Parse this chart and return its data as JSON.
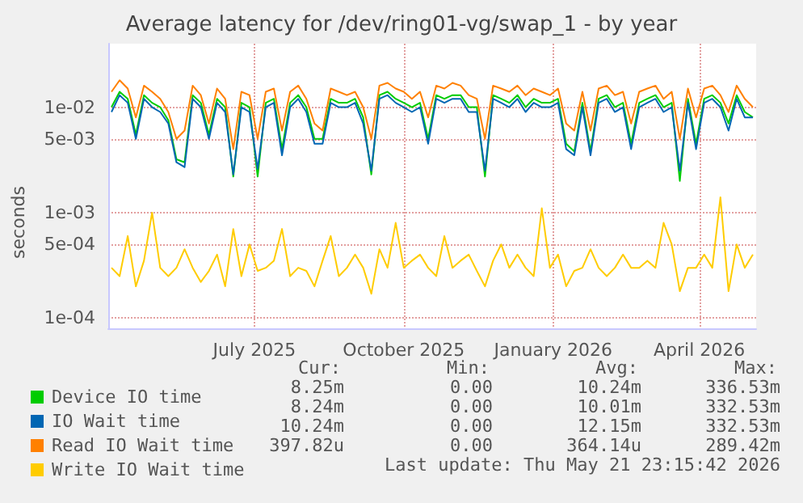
{
  "chart_data": {
    "type": "line",
    "title": "Average latency for /dev/ring01-vg/swap_1 - by year",
    "ylabel": "seconds",
    "log": "y",
    "grid": true,
    "legend": "bottom",
    "marker": "none",
    "ylim": [
      8e-05,
      0.04
    ],
    "yticks": [
      {
        "value": 0.0001,
        "label": "1e-04"
      },
      {
        "value": 0.0005,
        "label": "5e-04"
      },
      {
        "value": 0.001,
        "label": "1e-03"
      },
      {
        "value": 0.005,
        "label": "5e-03"
      },
      {
        "value": 0.01,
        "label": "1e-02"
      }
    ],
    "xlim": [
      "2025-04-17",
      "2026-05-21"
    ],
    "xticks": [
      {
        "value": "2025-07-16",
        "label": "July 2025"
      },
      {
        "value": "2025-10-16",
        "label": "October 2025"
      },
      {
        "value": "2026-01-16",
        "label": "January 2026"
      },
      {
        "value": "2026-04-16",
        "label": "April 2026"
      }
    ],
    "x": [
      "2025-04-19",
      "2025-04-24",
      "2025-04-29",
      "2025-05-04",
      "2025-05-09",
      "2025-05-14",
      "2025-05-19",
      "2025-05-24",
      "2025-05-29",
      "2025-06-03",
      "2025-06-08",
      "2025-06-13",
      "2025-06-18",
      "2025-06-23",
      "2025-06-28",
      "2025-07-03",
      "2025-07-08",
      "2025-07-13",
      "2025-07-18",
      "2025-07-23",
      "2025-07-28",
      "2025-08-02",
      "2025-08-07",
      "2025-08-12",
      "2025-08-17",
      "2025-08-22",
      "2025-08-27",
      "2025-09-01",
      "2025-09-06",
      "2025-09-11",
      "2025-09-16",
      "2025-09-21",
      "2025-09-26",
      "2025-10-01",
      "2025-10-06",
      "2025-10-11",
      "2025-10-16",
      "2025-10-21",
      "2025-10-26",
      "2025-10-31",
      "2025-11-05",
      "2025-11-10",
      "2025-11-15",
      "2025-11-20",
      "2025-11-25",
      "2025-11-30",
      "2025-12-05",
      "2025-12-10",
      "2025-12-15",
      "2025-12-20",
      "2025-12-25",
      "2025-12-30",
      "2026-01-04",
      "2026-01-09",
      "2026-01-14",
      "2026-01-19",
      "2026-01-24",
      "2026-01-29",
      "2026-02-03",
      "2026-02-08",
      "2026-02-13",
      "2026-02-18",
      "2026-02-23",
      "2026-02-28",
      "2026-03-05",
      "2026-03-10",
      "2026-03-15",
      "2026-03-20",
      "2026-03-25",
      "2026-03-30",
      "2026-04-04",
      "2026-04-09",
      "2026-04-14",
      "2026-04-19",
      "2026-04-24",
      "2026-04-29",
      "2026-05-04",
      "2026-05-09",
      "2026-05-14",
      "2026-05-19"
    ],
    "series": [
      {
        "name": "Device IO time",
        "color": "#00cc00",
        "values": [
          0.01,
          0.014,
          0.012,
          0.0055,
          0.013,
          0.011,
          0.01,
          0.0075,
          0.0032,
          0.003,
          0.013,
          0.011,
          0.0055,
          0.012,
          0.01,
          0.0022,
          0.011,
          0.01,
          0.0022,
          0.011,
          0.012,
          0.004,
          0.011,
          0.013,
          0.01,
          0.005,
          0.005,
          0.012,
          0.011,
          0.011,
          0.012,
          0.008,
          0.0023,
          0.013,
          0.014,
          0.012,
          0.011,
          0.01,
          0.011,
          0.005,
          0.013,
          0.012,
          0.013,
          0.013,
          0.01,
          0.01,
          0.0022,
          0.013,
          0.012,
          0.011,
          0.013,
          0.01,
          0.012,
          0.011,
          0.011,
          0.012,
          0.0045,
          0.0038,
          0.011,
          0.0038,
          0.012,
          0.013,
          0.01,
          0.011,
          0.0045,
          0.011,
          0.012,
          0.013,
          0.01,
          0.011,
          0.002,
          0.012,
          0.0045,
          0.012,
          0.013,
          0.011,
          0.007,
          0.013,
          0.009,
          0.008
        ]
      },
      {
        "name": "IO Wait time",
        "color": "#0066b3",
        "values": [
          0.009,
          0.013,
          0.011,
          0.005,
          0.012,
          0.01,
          0.009,
          0.007,
          0.003,
          0.0027,
          0.012,
          0.01,
          0.005,
          0.011,
          0.009,
          0.0023,
          0.01,
          0.009,
          0.0026,
          0.01,
          0.011,
          0.0035,
          0.01,
          0.012,
          0.009,
          0.0045,
          0.0045,
          0.011,
          0.01,
          0.01,
          0.011,
          0.007,
          0.0025,
          0.012,
          0.013,
          0.011,
          0.01,
          0.009,
          0.01,
          0.0045,
          0.012,
          0.011,
          0.012,
          0.012,
          0.009,
          0.009,
          0.0025,
          0.012,
          0.011,
          0.01,
          0.012,
          0.009,
          0.011,
          0.01,
          0.01,
          0.011,
          0.004,
          0.0035,
          0.01,
          0.0035,
          0.011,
          0.012,
          0.009,
          0.01,
          0.004,
          0.01,
          0.011,
          0.012,
          0.009,
          0.01,
          0.0025,
          0.011,
          0.004,
          0.011,
          0.012,
          0.01,
          0.006,
          0.012,
          0.008,
          0.008
        ]
      },
      {
        "name": "Read IO Wait time",
        "color": "#ff8000",
        "values": [
          0.014,
          0.018,
          0.015,
          0.008,
          0.016,
          0.014,
          0.012,
          0.009,
          0.005,
          0.006,
          0.016,
          0.013,
          0.007,
          0.015,
          0.012,
          0.004,
          0.014,
          0.013,
          0.005,
          0.014,
          0.015,
          0.006,
          0.014,
          0.016,
          0.012,
          0.007,
          0.006,
          0.015,
          0.014,
          0.013,
          0.014,
          0.01,
          0.005,
          0.016,
          0.017,
          0.015,
          0.014,
          0.012,
          0.014,
          0.008,
          0.016,
          0.015,
          0.017,
          0.016,
          0.013,
          0.012,
          0.005,
          0.016,
          0.015,
          0.014,
          0.016,
          0.013,
          0.015,
          0.014,
          0.013,
          0.015,
          0.007,
          0.006,
          0.014,
          0.006,
          0.015,
          0.016,
          0.013,
          0.014,
          0.007,
          0.014,
          0.015,
          0.016,
          0.012,
          0.014,
          0.005,
          0.015,
          0.008,
          0.015,
          0.016,
          0.013,
          0.009,
          0.016,
          0.012,
          0.01
        ]
      },
      {
        "name": "Write IO Wait time",
        "color": "#ffcc00",
        "values": [
          0.0003,
          0.00025,
          0.0006,
          0.0002,
          0.00035,
          0.001,
          0.0003,
          0.00025,
          0.0003,
          0.00045,
          0.0003,
          0.00022,
          0.00028,
          0.0004,
          0.0002,
          0.0007,
          0.00025,
          0.0005,
          0.00028,
          0.0003,
          0.00035,
          0.0007,
          0.00025,
          0.0003,
          0.00028,
          0.0002,
          0.00035,
          0.0006,
          0.00025,
          0.0003,
          0.0004,
          0.0003,
          0.00017,
          0.00045,
          0.0003,
          0.0008,
          0.0003,
          0.00035,
          0.0004,
          0.0003,
          0.00025,
          0.0006,
          0.0003,
          0.00035,
          0.0004,
          0.00028,
          0.0002,
          0.00035,
          0.0005,
          0.0003,
          0.0004,
          0.0003,
          0.00025,
          0.0011,
          0.0003,
          0.0004,
          0.0002,
          0.00028,
          0.0003,
          0.00045,
          0.0003,
          0.00025,
          0.0003,
          0.0004,
          0.0003,
          0.0003,
          0.00035,
          0.0003,
          0.0008,
          0.0005,
          0.00018,
          0.0003,
          0.0003,
          0.0004,
          0.0003,
          0.0014,
          0.00018,
          0.0005,
          0.0003,
          0.0004
        ]
      }
    ],
    "annotations": [
      "Cur:",
      "Min:",
      "Avg:",
      "Max:",
      "8.25m",
      "0.00",
      "10.24m",
      "336.53m",
      "8.24m",
      "0.00",
      "10.01m",
      "332.53m",
      "10.24m",
      "0.00",
      "12.15m",
      "332.53m",
      "397.82u",
      "0.00",
      "364.14u",
      "289.42m",
      "Last update: Thu May 21 23:15:42 2026"
    ]
  }
}
